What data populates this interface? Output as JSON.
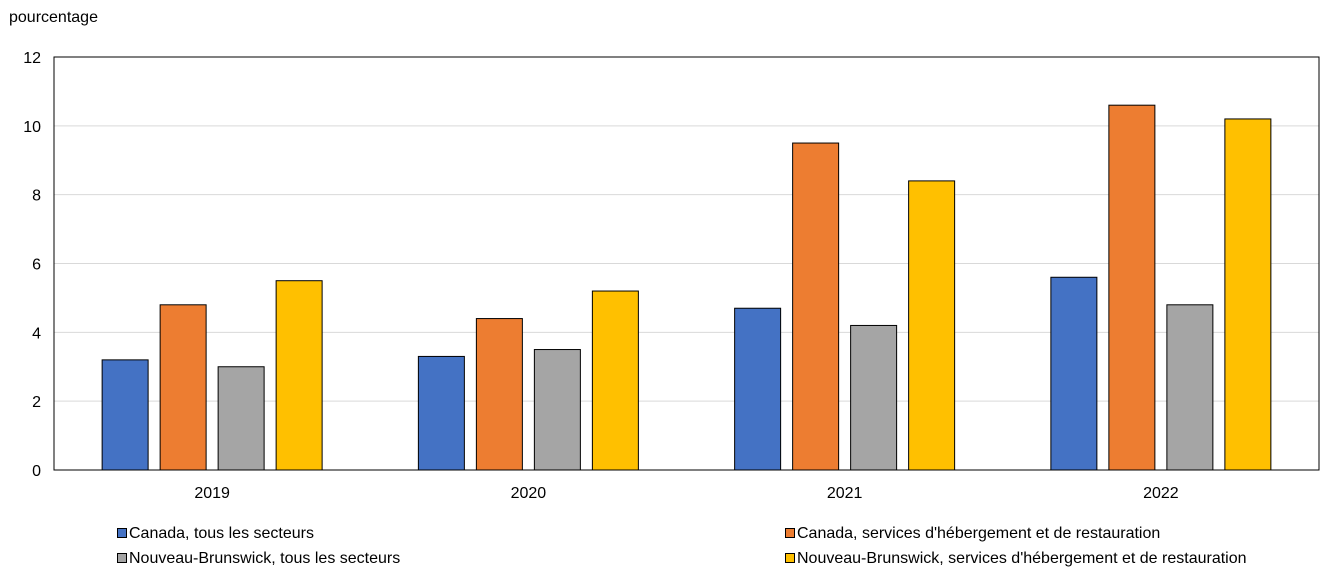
{
  "chart_data": {
    "type": "bar",
    "ylabel": "pourcentage",
    "xlabel": "",
    "categories": [
      "2019",
      "2020",
      "2021",
      "2022"
    ],
    "ylim": [
      0,
      12
    ],
    "yticks": [
      0,
      2,
      4,
      6,
      8,
      10,
      12
    ],
    "grid": true,
    "legend_position": "bottom",
    "series": [
      {
        "name": "Canada, tous les secteurs",
        "color": "#4472C4",
        "values": [
          3.2,
          3.3,
          4.7,
          5.6
        ]
      },
      {
        "name": "Canada, services d'hébergement et de restauration",
        "color": "#ED7D31",
        "values": [
          4.8,
          4.4,
          9.5,
          10.6
        ]
      },
      {
        "name": "Nouveau-Brunswick, tous les secteurs",
        "color": "#A5A5A5",
        "values": [
          3.0,
          3.5,
          4.2,
          4.8
        ]
      },
      {
        "name": "Nouveau-Brunswick, services d'hébergement et de restauration",
        "color": "#FFC000",
        "values": [
          5.5,
          5.2,
          8.4,
          10.2
        ]
      }
    ]
  }
}
